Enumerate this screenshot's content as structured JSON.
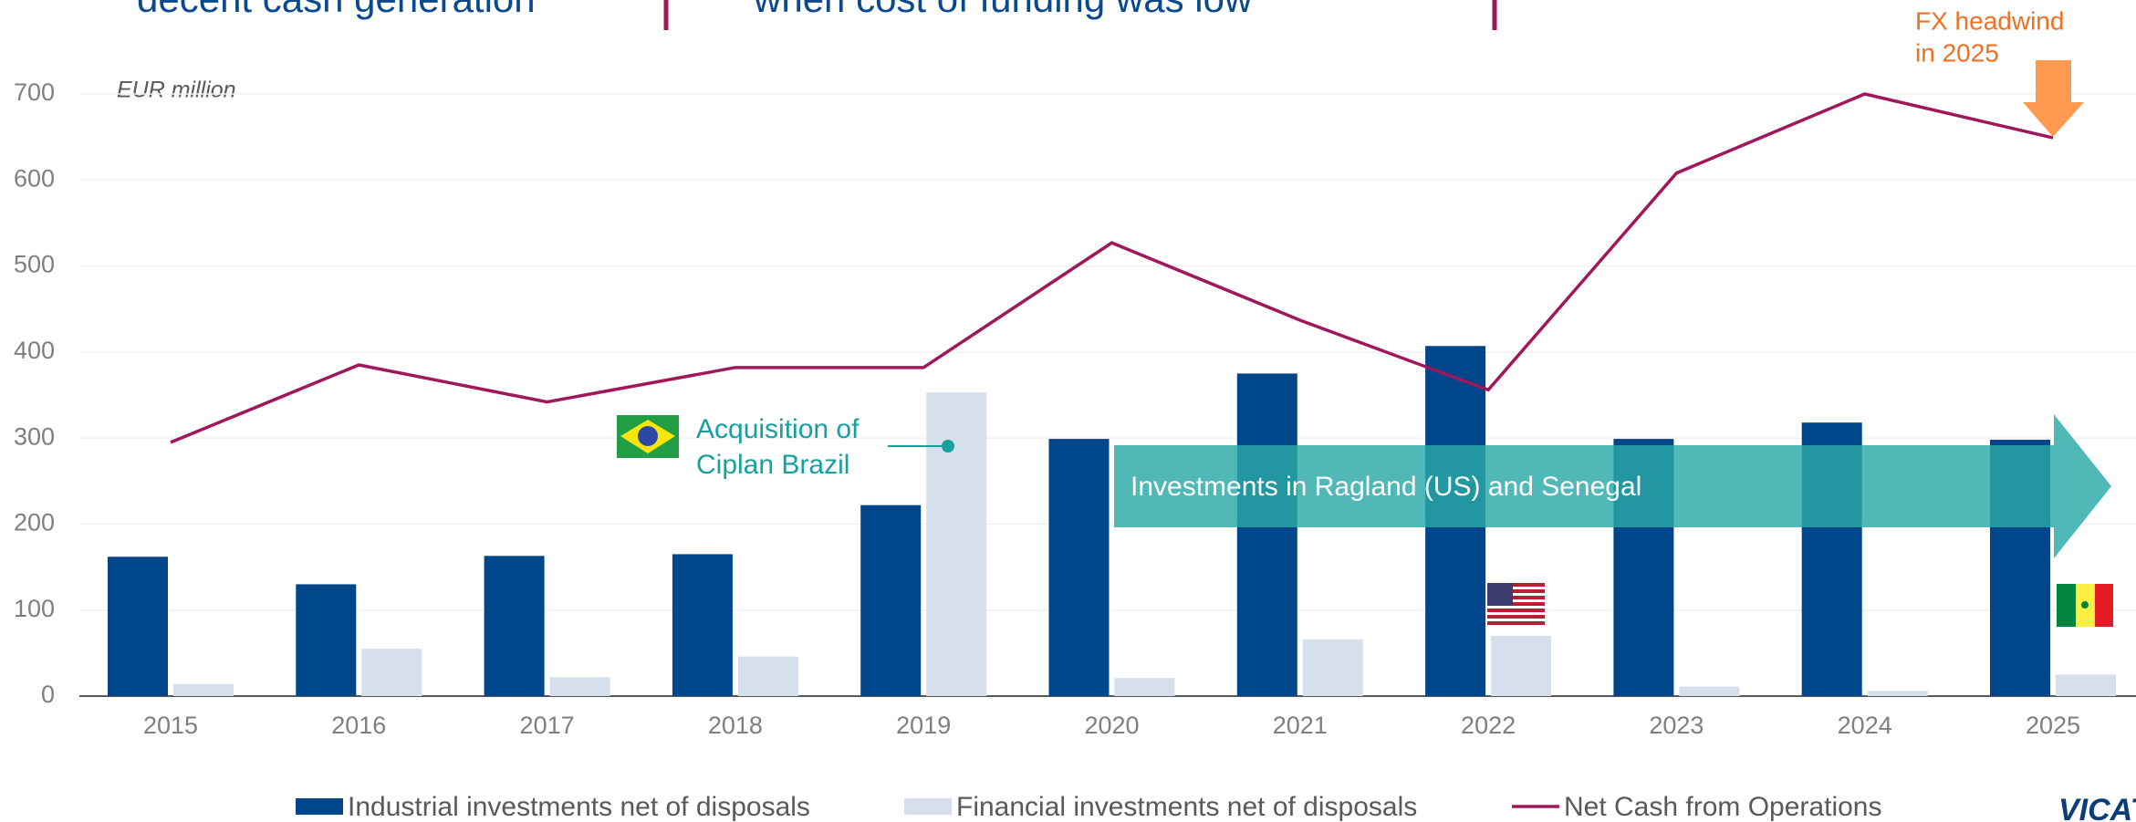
{
  "chart_data": {
    "type": "bar",
    "headlines": [
      "decent cash generation",
      "when cost of funding was low"
    ],
    "unit_label": "EUR million",
    "categories": [
      "2015",
      "2016",
      "2017",
      "2018",
      "2019",
      "2020",
      "2021",
      "2022",
      "2023",
      "2024",
      "2025"
    ],
    "series": [
      {
        "name": "Industrial investments net of disposals",
        "type": "bar",
        "color": "#00468b",
        "values": [
          162,
          130,
          163,
          165,
          222,
          299,
          375,
          407,
          299,
          318,
          298
        ]
      },
      {
        "name": "Financial investments net of disposals",
        "type": "bar",
        "color": "#d6dfec",
        "values": [
          14,
          55,
          22,
          46,
          353,
          21,
          66,
          70,
          11,
          6,
          25
        ]
      },
      {
        "name": "Net Cash from Operations",
        "type": "line",
        "color": "#a0185a",
        "values": [
          295,
          385,
          342,
          382,
          382,
          527,
          437,
          356,
          608,
          700,
          649
        ]
      }
    ],
    "ylim": [
      0,
      700
    ],
    "yticks": [
      0,
      100,
      200,
      300,
      400,
      500,
      600,
      700
    ],
    "grid": true,
    "annotations": {
      "fx": [
        "FX headwind",
        "in 2025"
      ],
      "acquisition": [
        "Acquisition of",
        "Ciplan Brazil"
      ],
      "investments": "Investments in Ragland (US) and Senegal"
    },
    "logo": "VICAT"
  }
}
